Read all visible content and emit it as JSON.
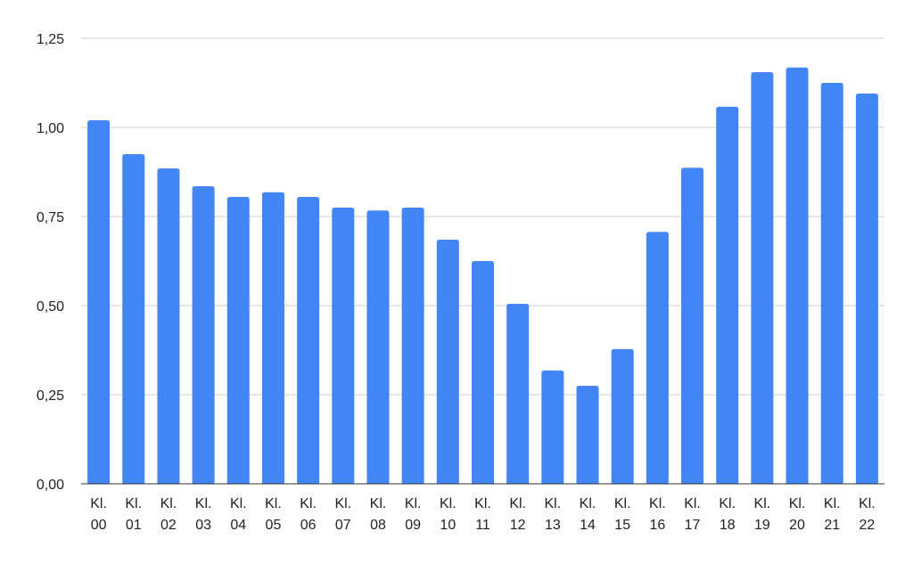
{
  "colors": {
    "bar": "#4285f4",
    "grid": "#cccccc",
    "axis": "#333333",
    "text": "#222222",
    "background": "#ffffff"
  },
  "chart_data": {
    "type": "bar",
    "title": "",
    "xlabel": "",
    "ylabel": "",
    "ylim": [
      0,
      1.25
    ],
    "grid": true,
    "legend": "none",
    "y_ticks": [
      0,
      0.25,
      0.5,
      0.75,
      1.0,
      1.25
    ],
    "y_tick_labels": [
      "0,00",
      "0,25",
      "0,50",
      "0,75",
      "1,00",
      "1,25"
    ],
    "categories": [
      "Kl. 00",
      "Kl. 01",
      "Kl. 02",
      "Kl. 03",
      "Kl. 04",
      "Kl. 05",
      "Kl. 06",
      "Kl. 07",
      "Kl. 08",
      "Kl. 09",
      "Kl. 10",
      "Kl. 11",
      "Kl. 12",
      "Kl. 13",
      "Kl. 14",
      "Kl. 15",
      "Kl. 16",
      "Kl. 17",
      "Kl. 18",
      "Kl. 19",
      "Kl. 20",
      "Kl. 21",
      "Kl. 22"
    ],
    "values": [
      1.02,
      0.925,
      0.885,
      0.835,
      0.805,
      0.818,
      0.805,
      0.775,
      0.767,
      0.775,
      0.685,
      0.625,
      0.505,
      0.318,
      0.275,
      0.378,
      0.707,
      0.887,
      1.058,
      1.155,
      1.168,
      1.125,
      1.095
    ]
  }
}
